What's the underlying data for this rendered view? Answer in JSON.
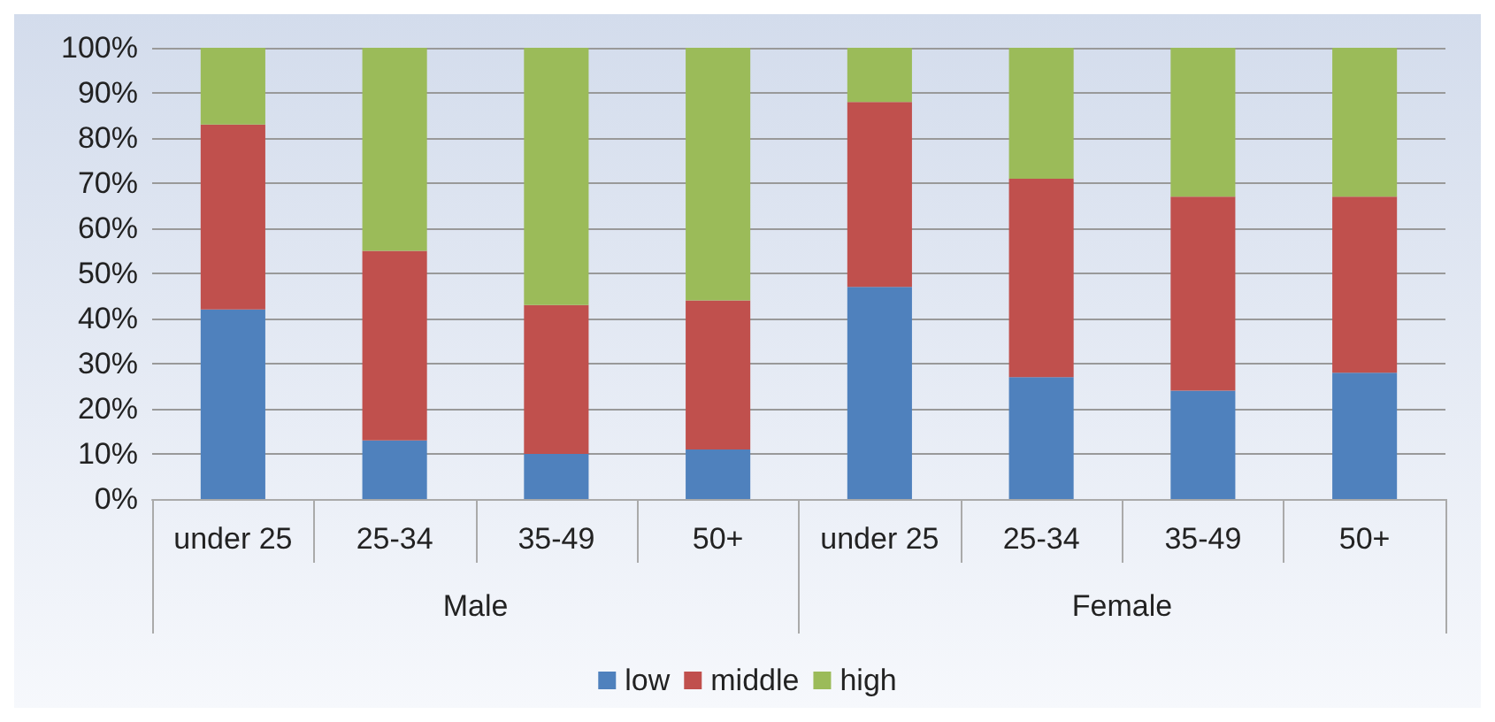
{
  "chart_data": {
    "type": "bar",
    "stacked": true,
    "categories": [
      "under 25",
      "25-34",
      "35-49",
      "50+",
      "under 25",
      "25-34",
      "35-49",
      "50+"
    ],
    "series": [
      {
        "name": "low",
        "color": "#4f81bd",
        "values": [
          42,
          13,
          10,
          11,
          47,
          27,
          24,
          28
        ]
      },
      {
        "name": "middle",
        "color": "#c0504d",
        "values": [
          41,
          42,
          33,
          33,
          41,
          44,
          43,
          39
        ]
      },
      {
        "name": "high",
        "color": "#9bbb59",
        "values": [
          17,
          45,
          57,
          56,
          12,
          29,
          33,
          33
        ]
      }
    ],
    "annotations": [
      "Male",
      "Female"
    ],
    "ylim": [
      0,
      100
    ],
    "yticks": [
      {
        "value": 0,
        "label": "0%"
      },
      {
        "value": 10,
        "label": "10%"
      },
      {
        "value": 20,
        "label": "20%"
      },
      {
        "value": 30,
        "label": "30%"
      },
      {
        "value": 40,
        "label": "40%"
      },
      {
        "value": 50,
        "label": "50%"
      },
      {
        "value": 60,
        "label": "60%"
      },
      {
        "value": 70,
        "label": "70%"
      },
      {
        "value": 80,
        "label": "80%"
      },
      {
        "value": 90,
        "label": "90%"
      },
      {
        "value": 100,
        "label": "100%"
      }
    ],
    "grid": "y",
    "legend": "bottom"
  }
}
